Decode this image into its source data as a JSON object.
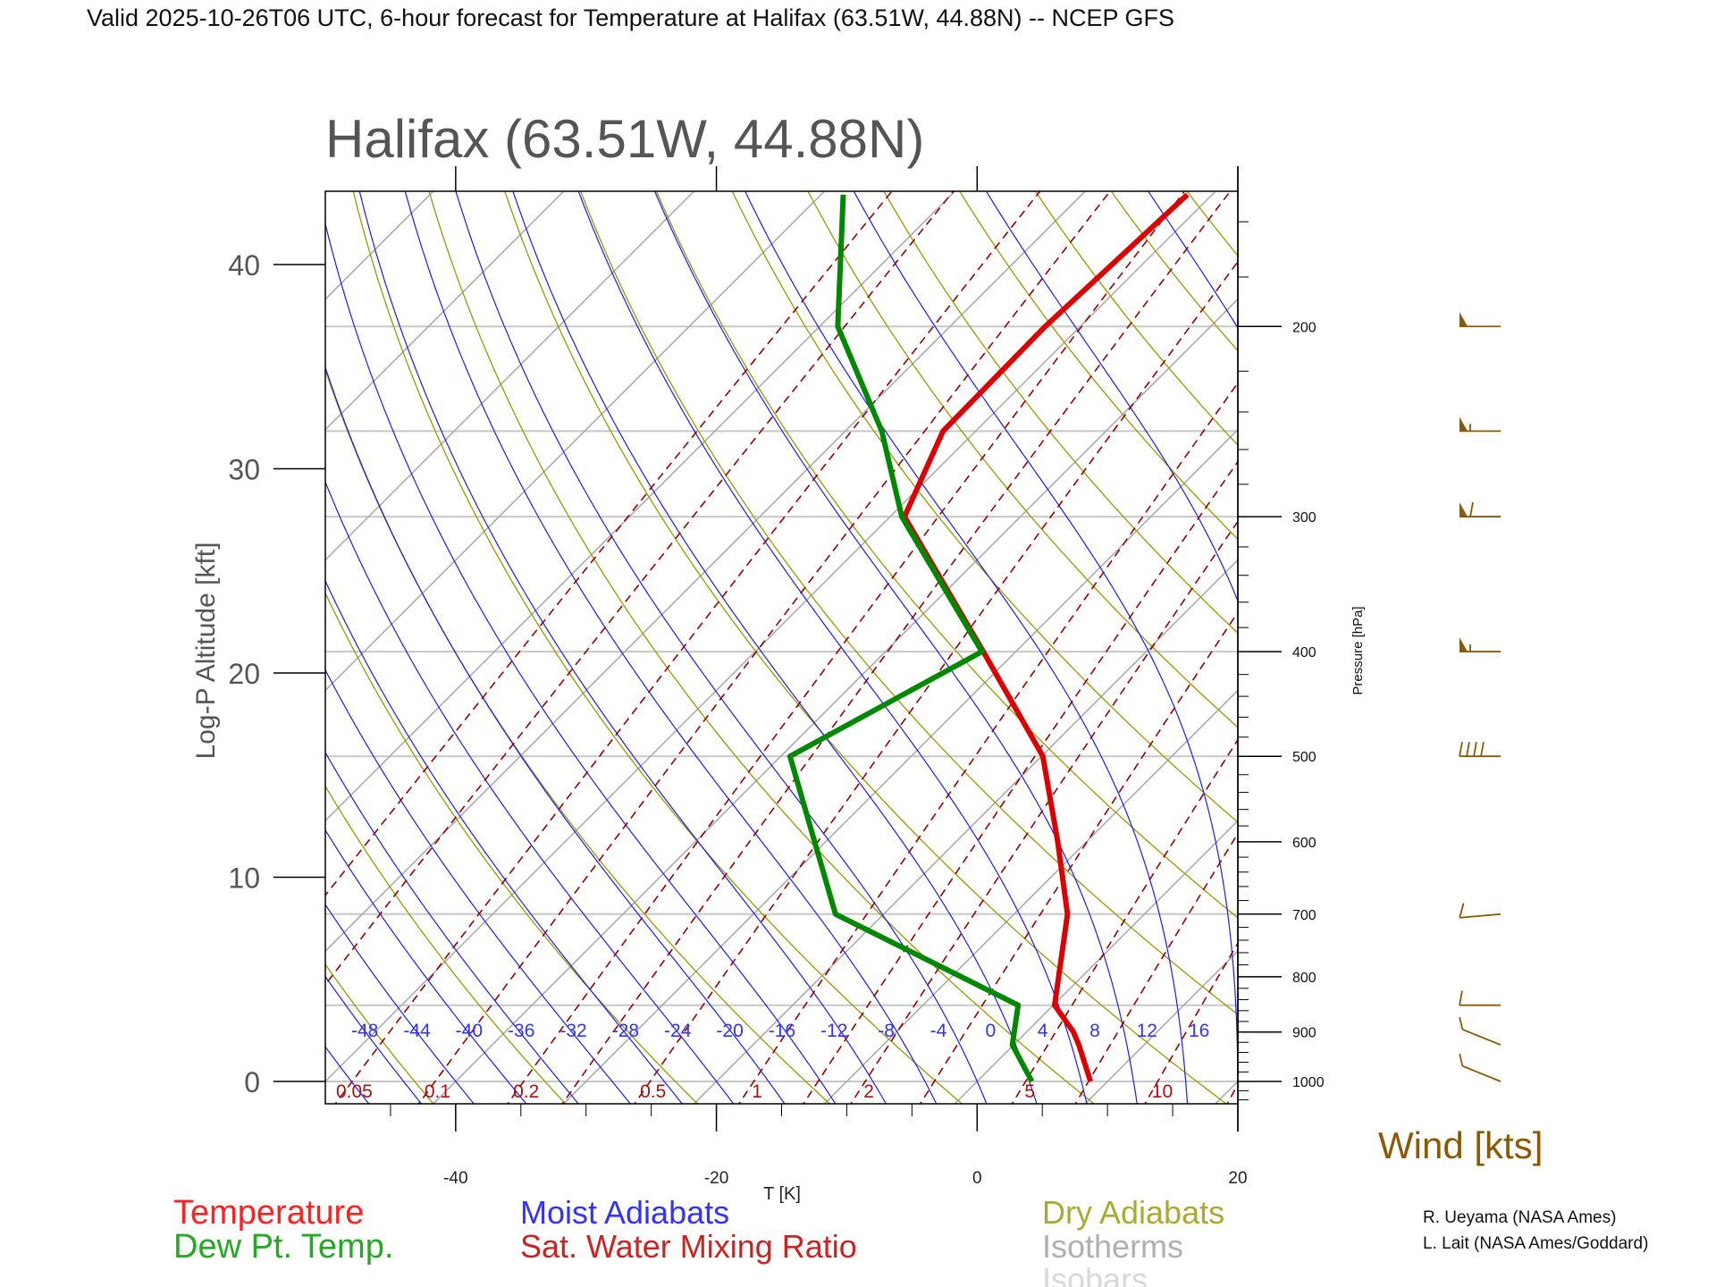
{
  "header": {
    "title": "Valid 2025-10-26T06 UTC, 6-hour forecast for Temperature at Halifax (63.51W, 44.88N) -- NCEP GFS"
  },
  "chart_data": {
    "type": "line",
    "title": "Halifax (63.51W, 44.88N)",
    "xlabel": "T [K]",
    "ylabel": "Log-P Altitude [kft]",
    "y2label": "Pressure [hPa]",
    "xlim": [
      -50,
      20
    ],
    "ylim_kft": [
      -1,
      43.6
    ],
    "x_ticks": [
      "-40",
      "-20",
      "0",
      "20"
    ],
    "x_tick_values": [
      -40,
      -20,
      0,
      20
    ],
    "y_ticks": [
      "0",
      "10",
      "20",
      "30",
      "40"
    ],
    "y_tick_values": [
      0,
      10,
      20,
      30,
      40
    ],
    "pressure_ticks": [
      "1000",
      "900",
      "800",
      "700",
      "600",
      "500",
      "400",
      "300",
      "200"
    ],
    "pressure_tick_values": [
      1000,
      900,
      800,
      700,
      600,
      500,
      400,
      300,
      200
    ],
    "isobars": [
      1000,
      850,
      700,
      500,
      400,
      300,
      250,
      200
    ],
    "series": [
      {
        "name": "Temperature",
        "color": "#dd0000",
        "points": [
          {
            "p": 1000,
            "t": 8.7
          },
          {
            "p": 925,
            "t": 5.0
          },
          {
            "p": 900,
            "t": 3.6
          },
          {
            "p": 850,
            "t": 0.1
          },
          {
            "p": 700,
            "t": -5.9
          },
          {
            "p": 600,
            "t": -12.2
          },
          {
            "p": 500,
            "t": -19.9
          },
          {
            "p": 400,
            "t": -32.5
          },
          {
            "p": 300,
            "t": -48.9
          },
          {
            "p": 250,
            "t": -52.5
          },
          {
            "p": 200,
            "t": -52.7
          },
          {
            "p": 151,
            "t": -51.9
          }
        ]
      },
      {
        "name": "Dew Pt. Temp.",
        "color": "#008800",
        "points": [
          {
            "p": 1000,
            "t": 4.2
          },
          {
            "p": 925,
            "t": -0.1
          },
          {
            "p": 850,
            "t": -2.7
          },
          {
            "p": 700,
            "t": -23.7
          },
          {
            "p": 500,
            "t": -39.3
          },
          {
            "p": 400,
            "t": -32.6
          },
          {
            "p": 300,
            "t": -49.1
          },
          {
            "p": 250,
            "t": -57.2
          },
          {
            "p": 200,
            "t": -68.6
          },
          {
            "p": 151,
            "t": -78.3
          }
        ]
      }
    ],
    "moist_adiabat_labels": [
      "-48",
      "-44",
      "-40",
      "-36",
      "-32",
      "-28",
      "-24",
      "-20",
      "-16",
      "-12",
      "-8",
      "-4",
      "0",
      "4",
      "8",
      "12",
      "16"
    ],
    "moist_adiabat_values": [
      -48,
      -44,
      -40,
      -36,
      -32,
      -28,
      -24,
      -20,
      -16,
      -12,
      -8,
      -4,
      0,
      4,
      8,
      12,
      16
    ],
    "mixing_ratio_labels": [
      "0.05",
      "0.1",
      "0.2",
      "0.5",
      "1",
      "2",
      "5",
      "10"
    ],
    "mixing_ratio_values": [
      0.05,
      0.1,
      0.2,
      0.5,
      1,
      2,
      5,
      10
    ],
    "winds": {
      "label": "Wind [kts]",
      "color": "#8b5a00",
      "barbs": [
        {
          "p": 200,
          "speed": 50,
          "dir": 270
        },
        {
          "p": 250,
          "speed": 55,
          "dir": 270
        },
        {
          "p": 300,
          "speed": 60,
          "dir": 270
        },
        {
          "p": 400,
          "speed": 55,
          "dir": 270
        },
        {
          "p": 500,
          "speed": 40,
          "dir": 270
        },
        {
          "p": 700,
          "speed": 10,
          "dir": 265
        },
        {
          "p": 850,
          "speed": 10,
          "dir": 270
        },
        {
          "p": 925,
          "speed": 10,
          "dir": 292
        },
        {
          "p": 1000,
          "speed": 10,
          "dir": 292
        }
      ]
    },
    "legend": [
      {
        "label": "Temperature",
        "color": "#ff2020"
      },
      {
        "label": "Dew Pt. Temp.",
        "color": "#22aa22"
      },
      {
        "label": "Moist Adiabats",
        "color": "#3333ff"
      },
      {
        "label": "Sat. Water Mixing Ratio",
        "color": "#cc2222"
      },
      {
        "label": "Dry Adiabats",
        "color": "#aaaa33"
      },
      {
        "label": "Isotherms",
        "color": "#b0b0b0"
      },
      {
        "label": "Isobars",
        "color": "#d8d8d8"
      }
    ]
  },
  "credits": [
    "R. Ueyama (NASA Ames)",
    "L. Lait (NASA Ames/Goddard)"
  ]
}
